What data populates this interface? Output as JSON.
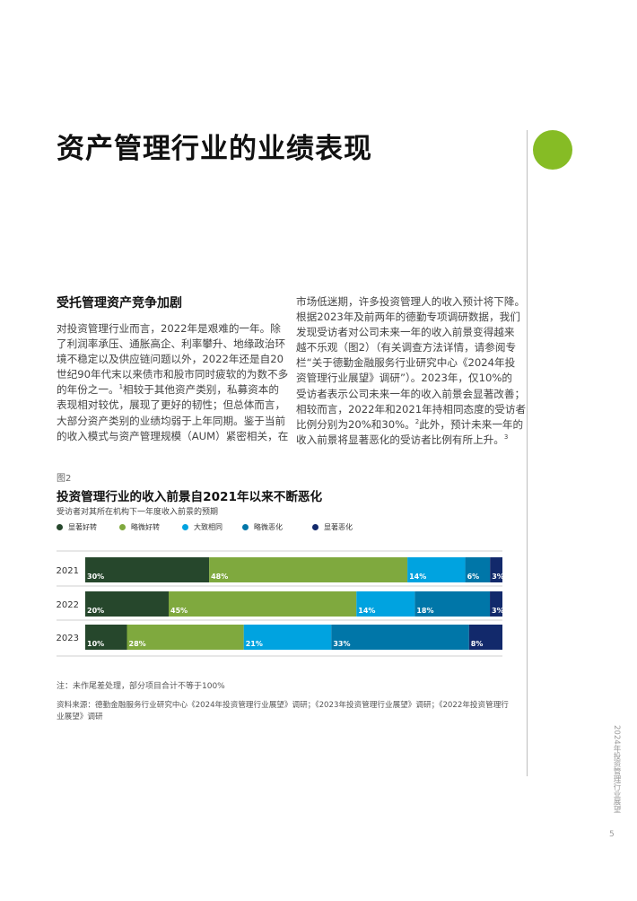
{
  "page": {
    "title": "资产管理行业的业绩表现",
    "section_heading": "受托管理资产竞争加剧",
    "body_left_lines": [
      "对投资管理行业而言，2022年是艰难的一年。除",
      "了利润率承压、通胀高企、利率攀升、地缘政治环",
      "境不稳定以及供应链问题以外，2022年还是自20",
      "世纪90年代末以来债市和股市同时疲软的为数不多",
      [
        "的年份之一。",
        "1",
        "相较于其他资产类别，私募资本的"
      ],
      "表现相对较优，展现了更好的韧性；但总体而言，",
      "大部分资产类别的业绩均弱于上年同期。鉴于当前",
      "的收入模式与资产管理规模（AUM）紧密相关，在"
    ],
    "body_right_lines": [
      "市场低迷期，许多投资管理人的收入预计将下降。",
      "根据2023年及前两年的德勤专项调研数据，我们",
      "发现受访者对公司未来一年的收入前景变得越来",
      "越不乐观（图2）（有关调查方法详情，请参阅专",
      "栏“关于德勤金融服务行业研究中心《2024年投",
      "资管理行业展望》调研”）。2023年，仅10%的",
      "受访者表示公司未来一年的收入前景会显著改善；",
      "相较而言，2022年和2021年持相同态度的受访者",
      [
        "比例分别为20%和30%。",
        "2",
        "此外，预计未来一年的"
      ],
      [
        "收入前景将显著恶化的受访者比例有所上升。",
        "3",
        ""
      ]
    ],
    "figure_label": "图2",
    "chart_title": "投资管理行业的收入前景自2021年以来不断恶化",
    "chart_subtitle": "受访者对其所在机构下一年度收入前景的预期",
    "note": "注：未作尾差处理，部分项目合计不等于100%",
    "source": "资料来源：德勤金融服务行业研究中心《2024年投资管理行业展望》调研；《2023年投资管理行业展望》调研；《2022年投资管理行业展望》调研",
    "side_text": "2024年投资管理行业展望",
    "page_number": "5"
  },
  "colors": {
    "accent_green": "#86bc25",
    "series": [
      "#26472c",
      "#7fa93e",
      "#00a3e0",
      "#0076a8",
      "#12296b"
    ]
  },
  "chart_data": {
    "type": "bar",
    "orientation": "horizontal",
    "stacked": true,
    "categories": [
      "2021",
      "2022",
      "2023"
    ],
    "series": [
      {
        "name": "显著好转",
        "values": [
          30,
          20,
          10
        ]
      },
      {
        "name": "略微好转",
        "values": [
          48,
          45,
          28
        ]
      },
      {
        "name": "大致相同",
        "values": [
          14,
          14,
          21
        ]
      },
      {
        "name": "略微恶化",
        "values": [
          6,
          18,
          33
        ]
      },
      {
        "name": "显著恶化",
        "values": [
          3,
          3,
          8
        ]
      }
    ],
    "value_labels": [
      [
        "30%",
        "48%",
        "14%",
        "6%",
        "3%"
      ],
      [
        "20%",
        "45%",
        "14%",
        "18%",
        "3%"
      ],
      [
        "10%",
        "28%",
        "21%",
        "33%",
        "8%"
      ]
    ],
    "legend_position": "top-left",
    "grid": false
  }
}
